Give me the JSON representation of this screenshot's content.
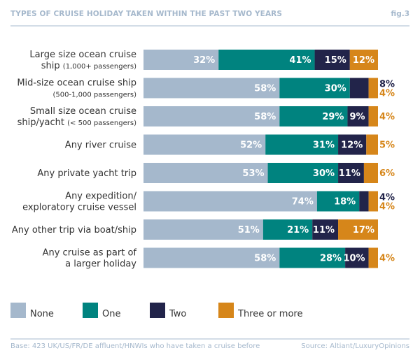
{
  "header": {
    "title": "TYPES OF CRUISE HOLIDAY TAKEN WITHIN THE PAST TWO YEARS",
    "fig": "fig.3"
  },
  "colors": {
    "None": "#a5b8cc",
    "One": "#00837f",
    "Two": "#22244a",
    "Three or more": "#d6861a"
  },
  "chart_data": {
    "type": "bar",
    "orientation": "horizontal",
    "stacked": true,
    "title": "TYPES OF CRUISE HOLIDAY TAKEN WITHIN THE PAST TWO YEARS",
    "xlabel": "",
    "ylabel": "",
    "xlim": [
      0,
      100
    ],
    "grid": false,
    "legend_position": "bottom-left",
    "categories": [
      {
        "main": "Large size ocean cruise",
        "line2": "ship",
        "sub": "(1,000+ passengers)"
      },
      {
        "main": "Mid-size ocean cruise ship",
        "line2": "",
        "sub": "(500-1,000 passengers)"
      },
      {
        "main": "Small size ocean cruise",
        "line2": "ship/yacht",
        "sub": "(< 500 passengers)"
      },
      {
        "main": "Any river cruise",
        "line2": "",
        "sub": ""
      },
      {
        "main": "Any private yacht trip",
        "line2": "",
        "sub": ""
      },
      {
        "main": "Any expedition/",
        "line2": "exploratory cruise vessel",
        "sub": ""
      },
      {
        "main": "Any other trip via boat/ship",
        "line2": "",
        "sub": ""
      },
      {
        "main": "Any cruise as part of",
        "line2": "a larger holiday",
        "sub": ""
      }
    ],
    "series": [
      {
        "name": "None",
        "values": [
          32,
          58,
          58,
          52,
          53,
          74,
          51,
          58
        ]
      },
      {
        "name": "One",
        "values": [
          41,
          30,
          29,
          31,
          30,
          18,
          21,
          28
        ]
      },
      {
        "name": "Two",
        "values": [
          15,
          8,
          9,
          12,
          11,
          4,
          11,
          10
        ]
      },
      {
        "name": "Three or more",
        "values": [
          12,
          4,
          4,
          5,
          6,
          4,
          17,
          4
        ]
      }
    ],
    "value_suffix": "%"
  },
  "legend": [
    {
      "name": "None"
    },
    {
      "name": "One"
    },
    {
      "name": "Two"
    },
    {
      "name": "Three or more"
    }
  ],
  "footer": {
    "base": "Base: 423 UK/US/FR/DE affluent/HNWIs who have taken a cruise before",
    "source": "Source: Altiant/LuxuryOpinions"
  }
}
